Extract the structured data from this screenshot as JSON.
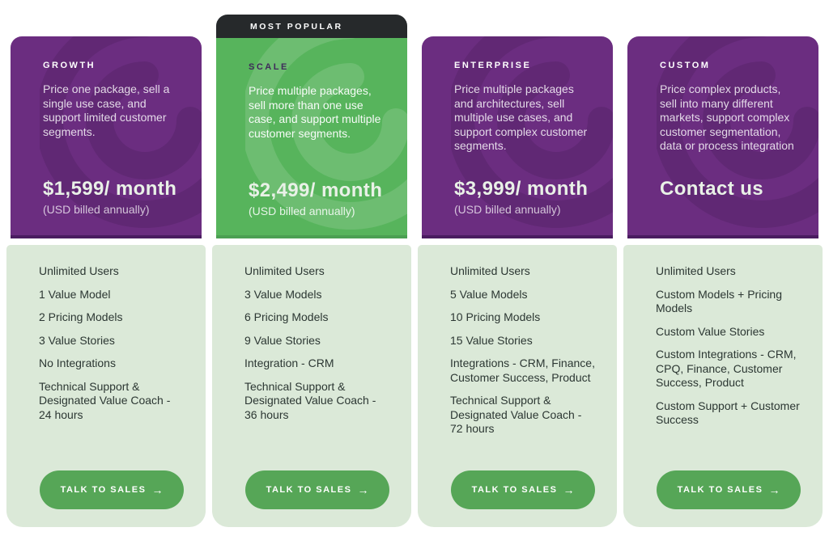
{
  "colors": {
    "page_bg": "#ffffff",
    "header_purple": "#6b2d80",
    "header_purple_edge": "#4a1c60",
    "header_green": "#57b45c",
    "header_green_edge": "#4ba052",
    "badge_bg": "#26292b",
    "body_bg": "#dbe9d8",
    "button_green": "#56a657",
    "feature_text": "#2c3733"
  },
  "plans": [
    {
      "name": "GROWTH",
      "description": "Price one package, sell a single use case, and support limited customer segments.",
      "price": "$1,599/ month",
      "price_note": "(USD billed annually)",
      "features": [
        "Unlimited Users",
        "1 Value Model",
        "2 Pricing Models",
        "3 Value Stories",
        "No Integrations",
        "Technical Support & Designated Value Coach - 24 hours"
      ],
      "cta_label": "TALK TO SALES",
      "cta_arrow": "→"
    },
    {
      "badge": "MOST POPULAR",
      "name": "SCALE",
      "description": "Price multiple packages, sell more than one use case, and support multiple customer segments.",
      "price": "$2,499/ month",
      "price_note": "(USD billed annually)",
      "features": [
        "Unlimited Users",
        "3 Value Models",
        "6 Pricing Models",
        "9 Value Stories",
        "Integration - CRM",
        "Technical Support & Designated Value Coach - 36 hours"
      ],
      "cta_label": "TALK TO SALES",
      "cta_arrow": "→"
    },
    {
      "name": "ENTERPRISE",
      "description": "Price multiple packages and architectures, sell multiple use cases, and support complex customer segments.",
      "price": "$3,999/ month",
      "price_note": "(USD billed annually)",
      "features": [
        "Unlimited Users",
        "5 Value Models",
        "10 Pricing Models",
        "15 Value Stories",
        "Integrations - CRM, Finance, Customer Success, Product",
        "Technical Support & Designated Value Coach - 72 hours"
      ],
      "cta_label": "TALK TO SALES",
      "cta_arrow": "→"
    },
    {
      "name": "CUSTOM",
      "description": "Price complex products, sell into many different markets, support complex customer segmentation, data or process integration",
      "price": "Contact us",
      "price_note": "",
      "features": [
        "Unlimited Users",
        "Custom Models + Pricing Models",
        "Custom Value Stories",
        "Custom Integrations - CRM, CPQ, Finance, Customer Success, Product",
        "Custom Support + Customer Success"
      ],
      "cta_label": "TALK TO SALES",
      "cta_arrow": "→"
    }
  ]
}
